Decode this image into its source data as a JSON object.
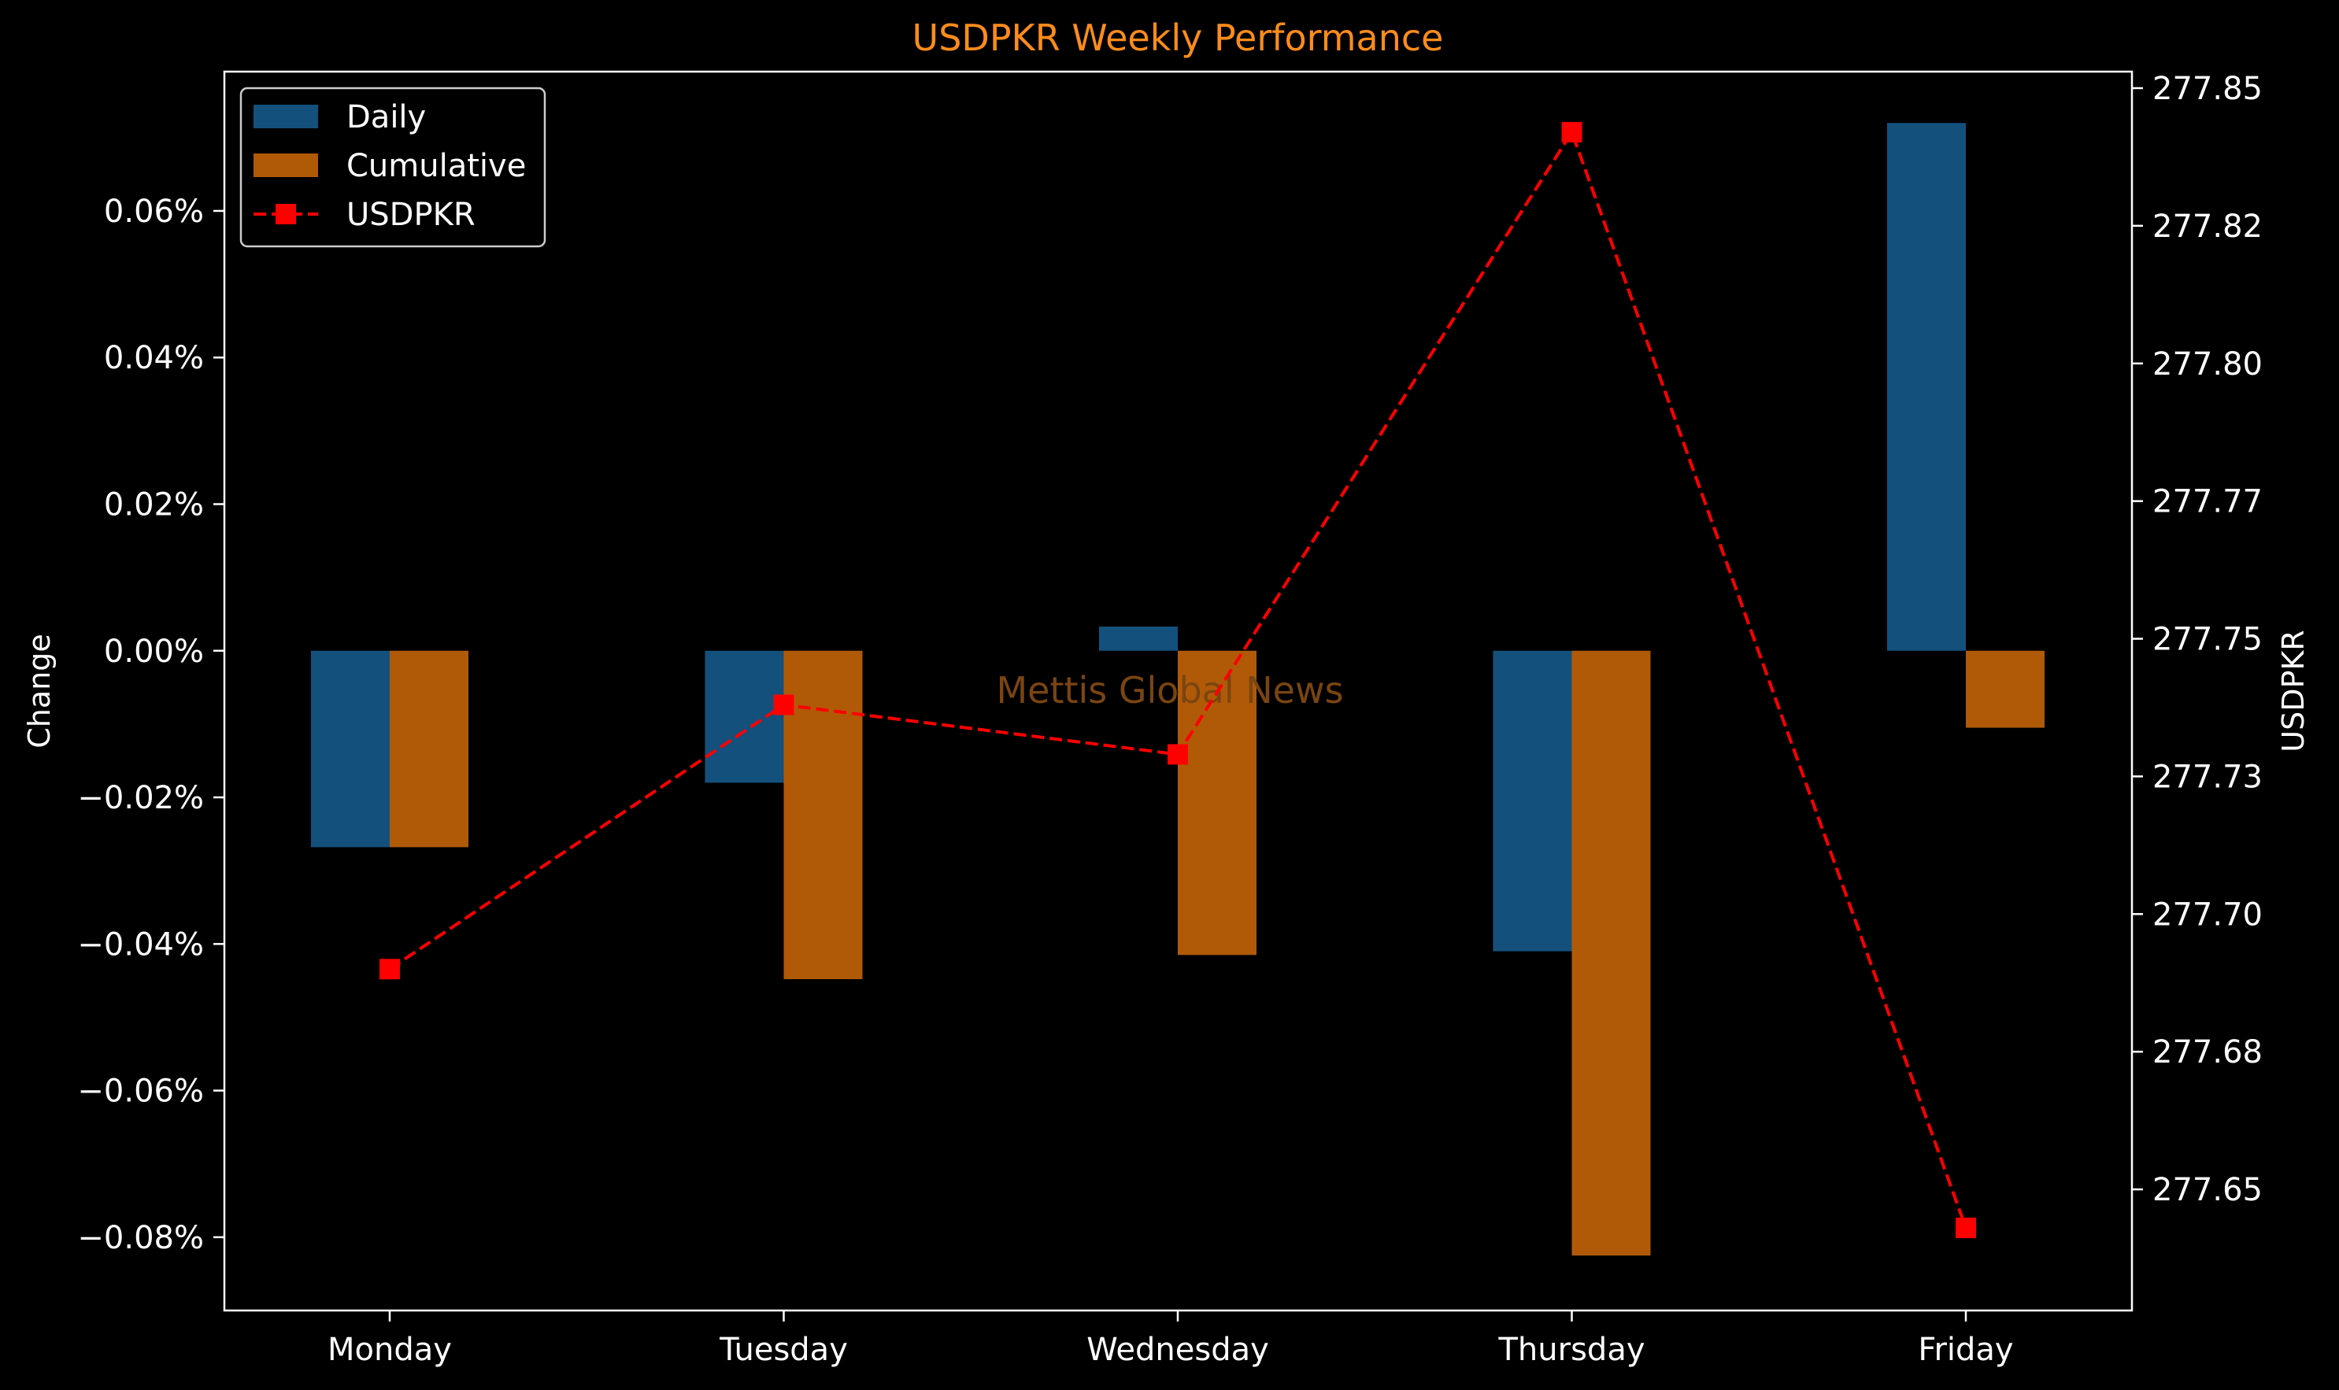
{
  "chart_data": {
    "type": "bar",
    "title": "USDPKR Weekly Performance",
    "watermark": "Mettis Global News",
    "categories": [
      "Monday",
      "Tuesday",
      "Wednesday",
      "Thursday",
      "Friday"
    ],
    "ylabel": "Change",
    "y2label": "USDPKR",
    "ylim": [
      -0.0009,
      0.00079
    ],
    "y2lim": [
      277.628,
      277.853
    ],
    "yticks": [
      -0.0008,
      -0.0006,
      -0.0004,
      -0.0002,
      0,
      0.0002,
      0.0004,
      0.0006
    ],
    "ytick_labels": [
      "−0.08%",
      "−0.06%",
      "−0.04%",
      "−0.02%",
      "0.00%",
      "0.02%",
      "0.04%",
      "0.06%"
    ],
    "y2ticks": [
      277.65,
      277.675,
      277.7,
      277.725,
      277.75,
      277.775,
      277.8,
      277.825,
      277.85
    ],
    "y2tick_labels": [
      "277.65",
      "277.68",
      "277.70",
      "277.73",
      "277.75",
      "277.77",
      "277.80",
      "277.82",
      "277.85"
    ],
    "legend_position": "top-left",
    "series": [
      {
        "name": "Daily",
        "kind": "bar",
        "axis": "left",
        "color": "#14507c",
        "values": [
          -0.000268,
          -0.00018,
          3.3e-05,
          -0.00041,
          0.00072
        ]
      },
      {
        "name": "Cumulative",
        "kind": "bar",
        "axis": "left",
        "color": "#b05a08",
        "values": [
          -0.000268,
          -0.000448,
          -0.000415,
          -0.000825,
          -0.000105
        ]
      },
      {
        "name": "USDPKR",
        "kind": "line",
        "axis": "right",
        "color": "#ff0000",
        "line_style": "dashed",
        "marker": "square",
        "values": [
          277.69,
          277.738,
          277.729,
          277.842,
          277.643
        ]
      }
    ],
    "colors": {
      "background": "#000000",
      "axes": "#ffffff",
      "title": "#ff8c1a",
      "watermark": "#7a4510"
    }
  }
}
